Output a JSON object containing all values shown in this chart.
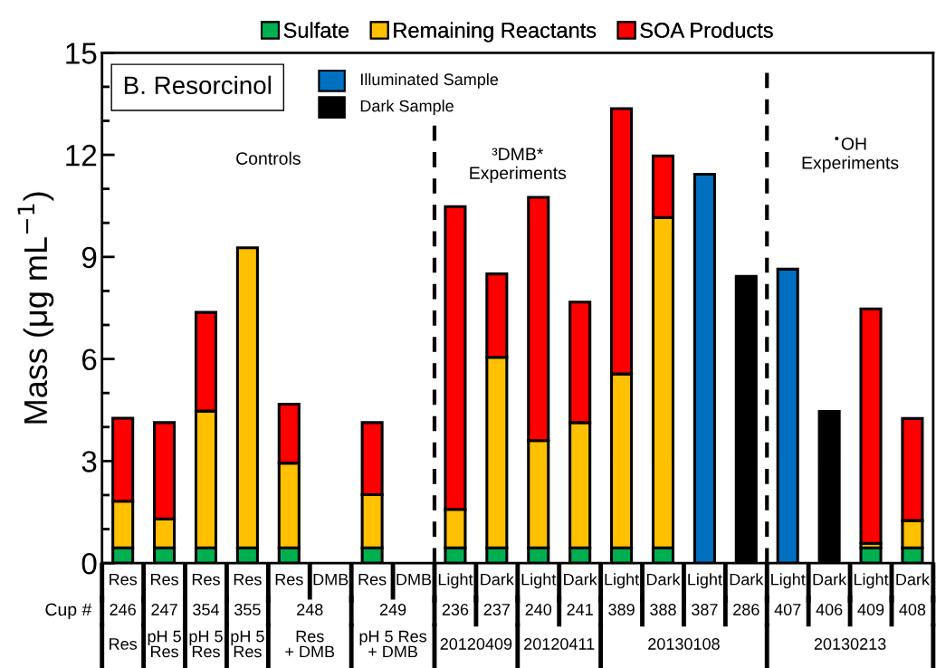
{
  "chart_data": {
    "type": "bar",
    "title": "B. Resorcinol",
    "ylabel": "Mass (μg mL$^{−1}$)",
    "stacked": true,
    "legend": "top",
    "grid": false,
    "categories": [
      "Res",
      "Res",
      "Res",
      "Res",
      "Res",
      "DMB",
      "Res",
      "DMB",
      "Light",
      "Dark",
      "Light",
      "Dark",
      "Light",
      "Dark",
      "Light",
      "Dark",
      "Light",
      "Dark",
      "Light",
      "Dark"
    ],
    "series": [
      {
        "name": "Sulfate",
        "color": "#00b050",
        "values": [
          0.45,
          0.45,
          0.45,
          0.45,
          0.45,
          null,
          0.45,
          null,
          0.45,
          0.45,
          0.45,
          0.45,
          0.45,
          0.45,
          null,
          null,
          null,
          null,
          0.45,
          0.45
        ]
      },
      {
        "name": "Remaining Reactants",
        "color": "#ffc000",
        "values": [
          1.37,
          0.85,
          4.02,
          8.82,
          2.49,
          null,
          1.56,
          null,
          1.13,
          5.6,
          3.15,
          3.68,
          5.11,
          9.71,
          null,
          null,
          null,
          null,
          0.13,
          0.8
        ]
      },
      {
        "name": "SOA Products",
        "color": "#ff0000",
        "values": [
          2.44,
          2.83,
          2.9,
          null,
          1.73,
          null,
          2.12,
          null,
          8.9,
          2.45,
          7.15,
          3.54,
          7.8,
          1.81,
          null,
          null,
          null,
          null,
          6.89,
          3.0
        ]
      },
      {
        "name": "Illuminated Sample",
        "color": "#0070c0",
        "values": [
          null,
          null,
          null,
          null,
          null,
          null,
          null,
          null,
          null,
          null,
          null,
          null,
          null,
          null,
          11.43,
          null,
          8.64,
          null,
          null,
          null
        ]
      },
      {
        "name": "Dark Sample",
        "color": "#000000",
        "values": [
          null,
          null,
          null,
          null,
          null,
          null,
          null,
          null,
          null,
          null,
          null,
          null,
          null,
          null,
          null,
          8.43,
          null,
          4.46,
          null,
          null
        ]
      }
    ],
    "ylim": [
      0,
      15
    ],
    "yticks": [
      0,
      3,
      6,
      9,
      12,
      15
    ],
    "annotations": [
      "Controls",
      "³DMB*\nExperiments",
      "$^{•}$OH\nExperiments",
      "Cup #",
      "246",
      "247",
      "354",
      "355",
      "248",
      "249",
      "236",
      "237",
      "240",
      "241",
      "389",
      "388",
      "387",
      "286",
      "407",
      "406",
      "409",
      "408",
      "Res",
      "pH 5\nRes",
      "pH 5\nRes",
      "pH 5\nRes",
      "Res\n+ DMB",
      "pH 5 Res\n+ DMB",
      "20120409",
      "20120411",
      "20130108",
      "20130213"
    ]
  }
}
